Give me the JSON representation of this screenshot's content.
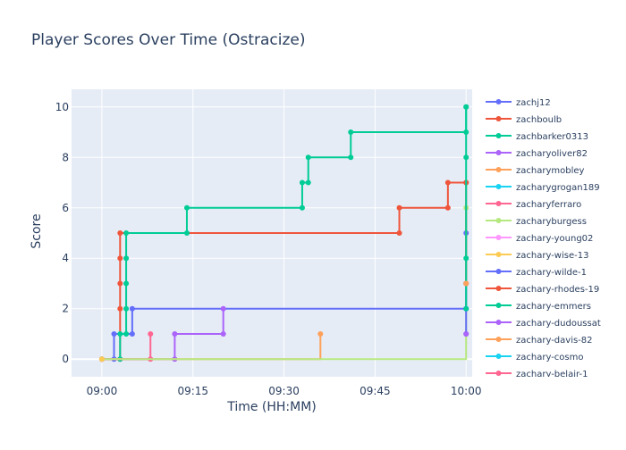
{
  "chart_data": {
    "type": "line",
    "line_shape": "step",
    "title": "Player Scores Over Time (Ostracize)",
    "xlabel": "Time (HH:MM)",
    "ylabel": "Score",
    "xlim": [
      "08:55",
      "10:01"
    ],
    "ylim": [
      -0.7,
      10.7
    ],
    "x_ticks": [
      "09:00",
      "09:15",
      "09:30",
      "09:45",
      "10:00"
    ],
    "y_ticks": [
      0,
      2,
      4,
      6,
      8,
      10
    ],
    "grid": true,
    "legend_position": "right",
    "series": [
      {
        "name": "zachj12",
        "color": "#636efa",
        "points": [
          [
            "09:00",
            0
          ],
          [
            "09:02",
            0
          ],
          [
            "09:02",
            1
          ],
          [
            "09:05",
            1
          ],
          [
            "09:05",
            2
          ],
          [
            "10:00",
            2
          ],
          [
            "10:00",
            5
          ]
        ]
      },
      {
        "name": "zachboulb",
        "color": "#EF553B",
        "points": [
          [
            "09:00",
            0
          ],
          [
            "09:03",
            0
          ],
          [
            "09:03",
            2
          ],
          [
            "09:03",
            3
          ],
          [
            "09:03",
            4
          ],
          [
            "09:03",
            5
          ],
          [
            "09:49",
            5
          ],
          [
            "09:49",
            6
          ],
          [
            "09:57",
            6
          ],
          [
            "09:57",
            7
          ],
          [
            "10:00",
            7
          ]
        ]
      },
      {
        "name": "zachbarker0313",
        "color": "#00cc96",
        "points": [
          [
            "09:00",
            0
          ],
          [
            "09:03",
            0
          ],
          [
            "09:03",
            1
          ],
          [
            "09:04",
            1
          ],
          [
            "09:04",
            2
          ],
          [
            "09:04",
            3
          ],
          [
            "09:04",
            4
          ],
          [
            "09:04",
            5
          ],
          [
            "09:14",
            5
          ],
          [
            "09:14",
            6
          ],
          [
            "09:33",
            6
          ],
          [
            "09:33",
            7
          ],
          [
            "09:34",
            7
          ],
          [
            "09:34",
            8
          ],
          [
            "09:41",
            8
          ],
          [
            "09:41",
            9
          ],
          [
            "10:00",
            9
          ],
          [
            "10:00",
            10
          ]
        ]
      },
      {
        "name": "zacharyoliver82",
        "color": "#ab63fa",
        "points": [
          [
            "09:00",
            0
          ],
          [
            "09:12",
            0
          ],
          [
            "09:12",
            1
          ],
          [
            "09:20",
            1
          ],
          [
            "09:20",
            2
          ]
        ]
      },
      {
        "name": "zacharymobley",
        "color": "#FFA15A",
        "points": [
          [
            "09:00",
            0
          ],
          [
            "09:36",
            1
          ]
        ]
      },
      {
        "name": "zacharygrogan189",
        "color": "#19d3f3",
        "points": [
          [
            "09:00",
            0
          ]
        ]
      },
      {
        "name": "zacharyferraro",
        "color": "#FF6692",
        "points": [
          [
            "09:00",
            0
          ],
          [
            "09:08",
            0
          ],
          [
            "09:08",
            1
          ]
        ]
      },
      {
        "name": "zacharyburgess",
        "color": "#B6E880",
        "points": [
          [
            "09:00",
            0
          ],
          [
            "10:00",
            6
          ]
        ]
      },
      {
        "name": "zachary-young02",
        "color": "#FF97FF",
        "points": [
          [
            "09:00",
            0
          ]
        ]
      },
      {
        "name": "zachary-wise-13",
        "color": "#FECB52",
        "points": [
          [
            "09:00",
            0
          ]
        ]
      },
      {
        "name": "zachary-wilde-1",
        "color": "#636efa",
        "points": [
          [
            "10:00",
            1
          ],
          [
            "10:00",
            2
          ],
          [
            "10:00",
            3
          ]
        ]
      },
      {
        "name": "zachary-rhodes-19",
        "color": "#EF553B",
        "points": [
          [
            "10:00",
            3
          ],
          [
            "10:00",
            7
          ]
        ]
      },
      {
        "name": "zachary-emmers",
        "color": "#00cc96",
        "points": [
          [
            "10:00",
            2
          ],
          [
            "10:00",
            4
          ],
          [
            "10:00",
            8
          ],
          [
            "10:00",
            10
          ]
        ]
      },
      {
        "name": "zachary-dudoussat",
        "color": "#ab63fa",
        "points": [
          [
            "10:00",
            1
          ]
        ]
      },
      {
        "name": "zachary-davis-82",
        "color": "#FFA15A",
        "points": [
          [
            "10:00",
            3
          ]
        ]
      },
      {
        "name": "zachary-cosmo",
        "color": "#19d3f3",
        "points": []
      },
      {
        "name": "zachary-belair-1",
        "color": "#FF6692",
        "points": []
      }
    ]
  }
}
